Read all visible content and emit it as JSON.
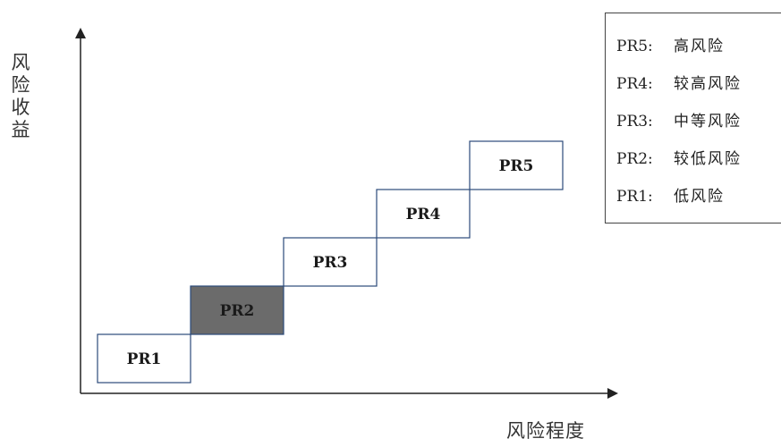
{
  "axes": {
    "y_label_chars": [
      "风",
      "险",
      "收",
      "益"
    ],
    "x_label": "风险程度"
  },
  "levels": [
    {
      "label": "PR1",
      "highlighted": false
    },
    {
      "label": "PR2",
      "highlighted": true
    },
    {
      "label": "PR3",
      "highlighted": false
    },
    {
      "label": "PR4",
      "highlighted": false
    },
    {
      "label": "PR5",
      "highlighted": false
    }
  ],
  "legend": [
    {
      "code": "PR5:",
      "desc": "高风险"
    },
    {
      "code": "PR4:",
      "desc": "较高风险"
    },
    {
      "code": "PR3:",
      "desc": "中等风险"
    },
    {
      "code": "PR2:",
      "desc": "较低风险"
    },
    {
      "code": "PR1:",
      "desc": "低风险"
    }
  ],
  "colors": {
    "box_border": "#2b4a7a",
    "box_fill": "#ffffff",
    "highlight_fill": "#6b6b6b",
    "axis": "#222222"
  }
}
